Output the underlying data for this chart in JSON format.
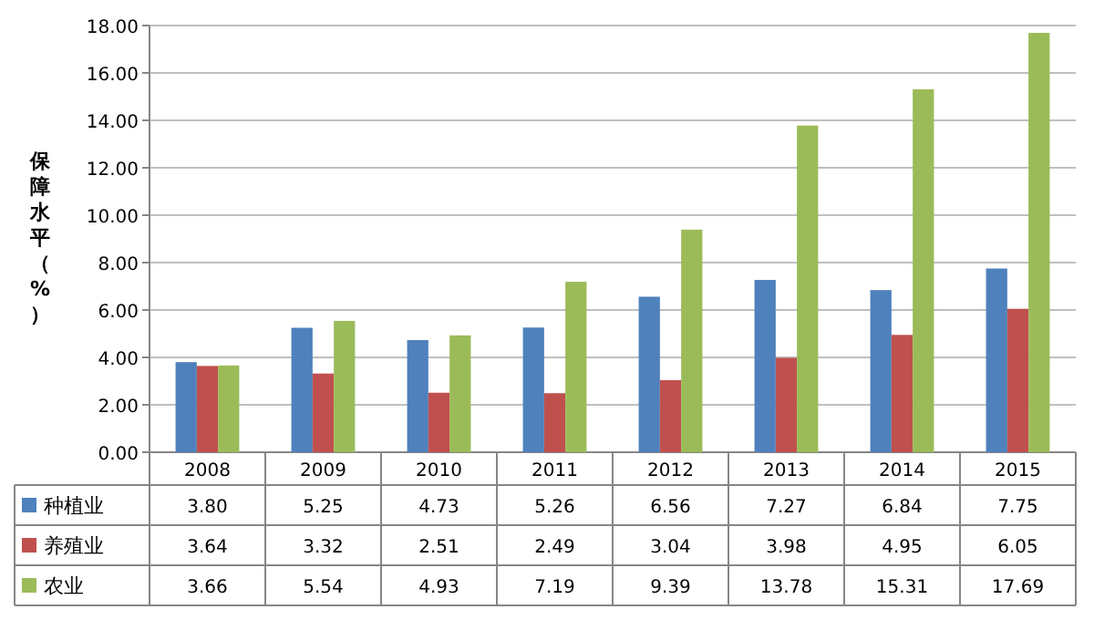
{
  "chart_data": {
    "type": "bar",
    "ylabel": "保障水平（%）",
    "categories": [
      "2008",
      "2009",
      "2010",
      "2011",
      "2012",
      "2013",
      "2014",
      "2015"
    ],
    "series": [
      {
        "name": "种植业",
        "color": "#4f81bd",
        "values": [
          3.8,
          5.25,
          4.73,
          5.26,
          6.56,
          7.27,
          6.84,
          7.75
        ],
        "value_labels": [
          "3.80",
          "5.25",
          "4.73",
          "5.26",
          "6.56",
          "7.27",
          "6.84",
          "7.75"
        ]
      },
      {
        "name": "养殖业",
        "color": "#c0504d",
        "values": [
          3.64,
          3.32,
          2.51,
          2.49,
          3.04,
          3.98,
          4.95,
          6.05
        ],
        "value_labels": [
          "3.64",
          "3.32",
          "2.51",
          "2.49",
          "3.04",
          "3.98",
          "4.95",
          "6.05"
        ]
      },
      {
        "name": "农业",
        "color": "#9bbb59",
        "values": [
          3.66,
          5.54,
          4.93,
          7.19,
          9.39,
          13.78,
          15.31,
          17.69
        ],
        "value_labels": [
          "3.66",
          "5.54",
          "4.93",
          "7.19",
          "9.39",
          "13.78",
          "15.31",
          "17.69"
        ]
      }
    ],
    "ylim": [
      0,
      18
    ],
    "yticks": [
      {
        "value": 0,
        "label": "0.00"
      },
      {
        "value": 2,
        "label": "2.00"
      },
      {
        "value": 4,
        "label": "4.00"
      },
      {
        "value": 6,
        "label": "6.00"
      },
      {
        "value": 8,
        "label": "8.00"
      },
      {
        "value": 10,
        "label": "10.00"
      },
      {
        "value": 12,
        "label": "12.00"
      },
      {
        "value": 14,
        "label": "14.00"
      },
      {
        "value": 16,
        "label": "16.00"
      },
      {
        "value": 18,
        "label": "18.00"
      }
    ],
    "grid": "y",
    "legend": "bottom"
  }
}
